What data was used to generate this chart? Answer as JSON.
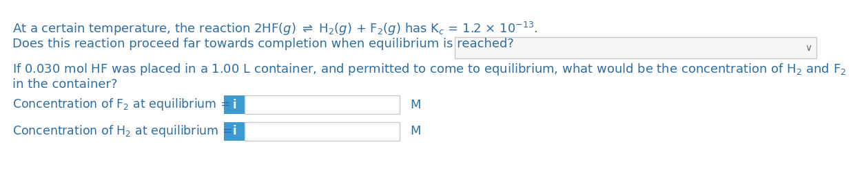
{
  "bg_color": "#ffffff",
  "text_color": "#2e6da4",
  "input_box_color": "#3d9ad1",
  "dropdown_color": "#f7f7f7",
  "dropdown_border": "#c8c8c8",
  "font_size_main": 13.0,
  "font_size_label": 12.5,
  "font_size_unit": 13.0,
  "line1": "At a certain temperature, the reaction 2HF($g$) $\\rightleftharpoons$ H$_2$($g$) + F$_2$($g$) has K$_c$ = 1.2 × 10$^{-13}$.",
  "line2": "Does this reaction proceed far towards completion when equilibrium is reached?",
  "line3": "If 0.030 mol HF was placed in a 1.00 L container, and permitted to come to equilibrium, what would be the concentration of H$_2$ and F$_2$",
  "line4": "in the container?",
  "label_f2": "Concentration of F$_2$ at equilibrium =",
  "label_h2": "Concentration of H$_2$ at equilibrium =",
  "unit": "M",
  "input_i": "i"
}
